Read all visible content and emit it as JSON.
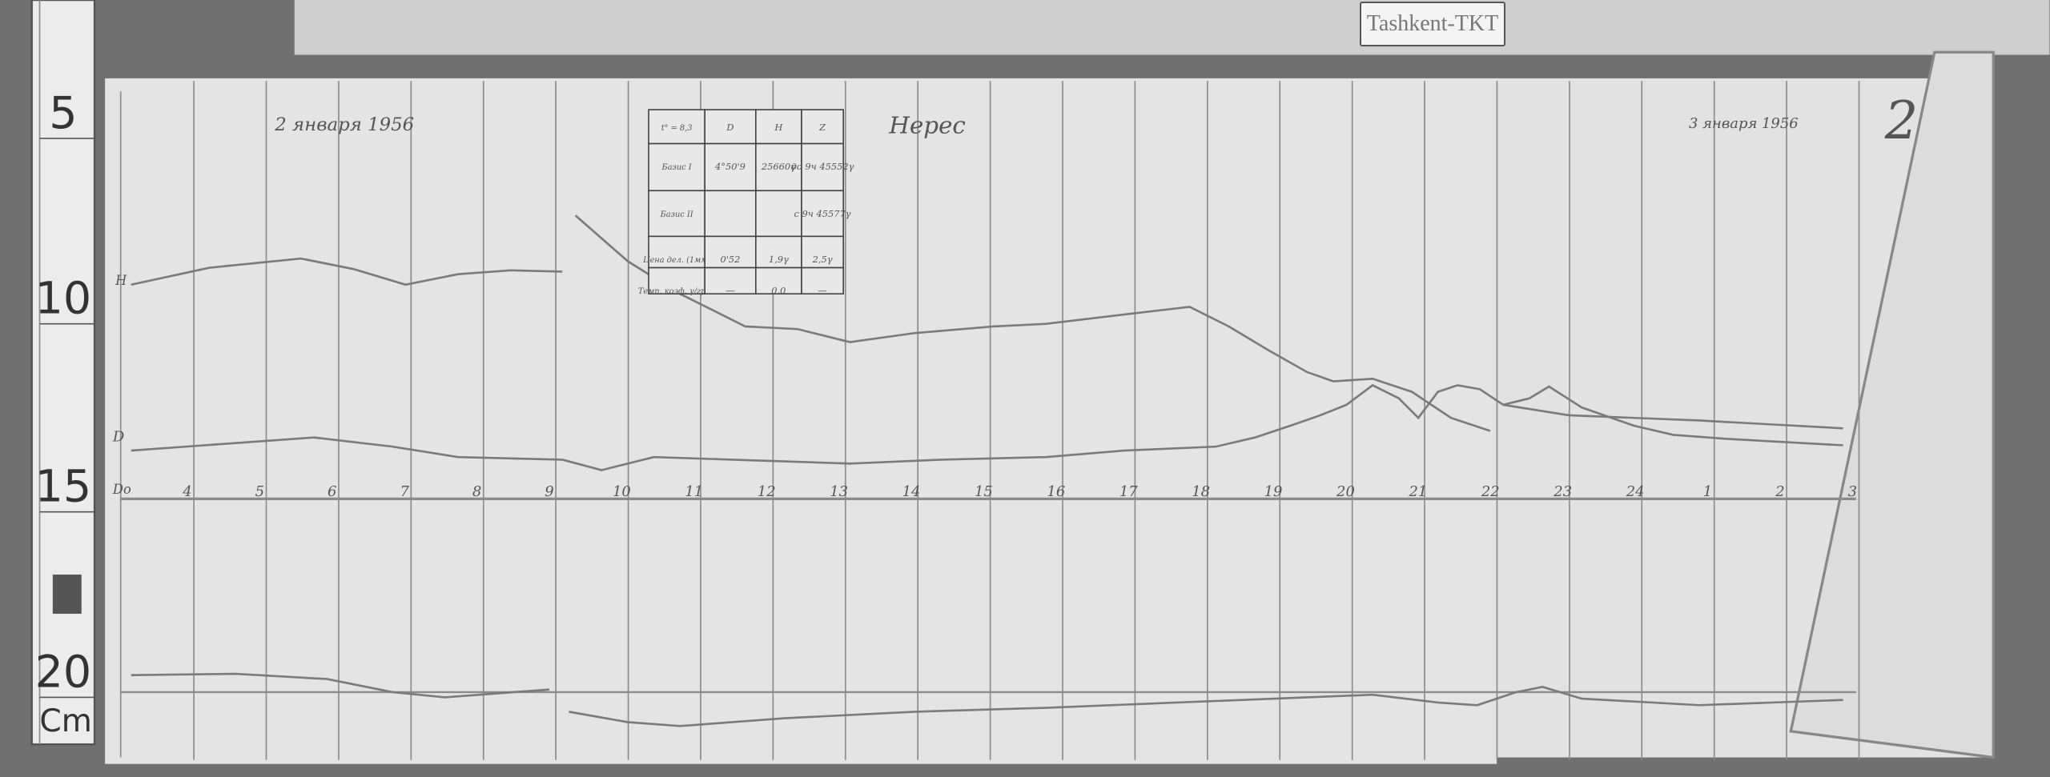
{
  "station_label": "Tashkent-TKT",
  "sheet_number": "2",
  "ruler": {
    "marks": [
      "5",
      "10",
      "15",
      "20"
    ],
    "unit": "Cm"
  },
  "dates": {
    "left": "2 января 1956",
    "right": "3 января 1956"
  },
  "note": "Нерес",
  "trace_labels": {
    "h": "H",
    "d": "D",
    "baseline": "Do"
  },
  "hours": [
    "4",
    "5",
    "6",
    "7",
    "8",
    "9",
    "10",
    "11",
    "12",
    "13",
    "14",
    "15",
    "16",
    "17",
    "18",
    "19",
    "20",
    "21",
    "22",
    "23",
    "24",
    "1",
    "2",
    "3"
  ],
  "table": {
    "rows": [
      [
        "t° = 8,3",
        "D",
        "H",
        "Z"
      ],
      [
        "Базис I",
        "4°50'9",
        "25660γ",
        "до 9ч 45552γ"
      ],
      [
        "Базис II",
        "",
        "",
        "с 9ч 45577γ"
      ],
      [
        "Цена дел. (1мм)",
        "0'52",
        "1,9γ",
        "2,5γ"
      ],
      [
        "Темп. коэф. γ/град",
        "—",
        "0,0",
        "—"
      ]
    ]
  },
  "colors": {
    "paper": "#e6e6e6",
    "grid": "#8a8a8a",
    "trace": "#7a7a7a",
    "background": "#6e6e6e"
  }
}
